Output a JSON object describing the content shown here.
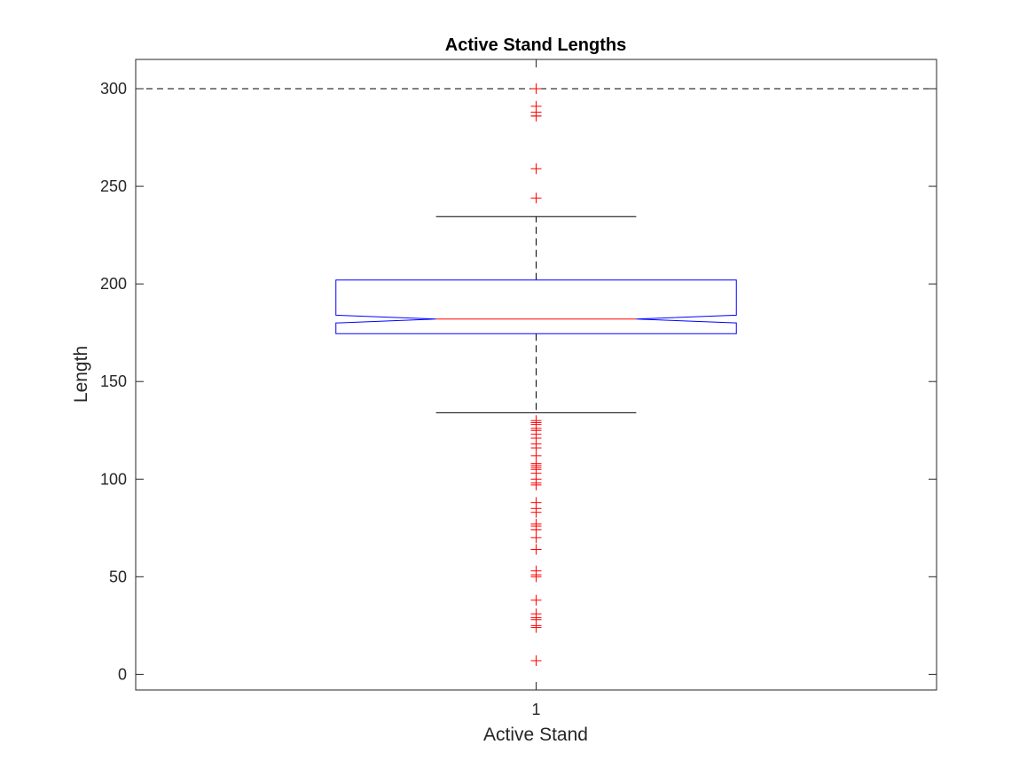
{
  "chart_data": {
    "type": "box",
    "title": "Active Stand Lengths",
    "xlabel": "Active Stand",
    "ylabel": "Length",
    "categories": [
      "1"
    ],
    "ylim": [
      -8,
      315
    ],
    "yticks": [
      0,
      50,
      100,
      150,
      200,
      250,
      300
    ],
    "notched": true,
    "reference_line": {
      "y": 300,
      "style": "dashed"
    },
    "boxes": [
      {
        "category": "1",
        "q1": 174.5,
        "median": 182,
        "q3": 202,
        "notch_low": 180,
        "notch_high": 184,
        "whisker_low": 134,
        "whisker_high": 234.5,
        "outliers": [
          300,
          291,
          288,
          286,
          286,
          259,
          244,
          130,
          129,
          128,
          126,
          125,
          123,
          121,
          118,
          116,
          112,
          108,
          107,
          106,
          105,
          103,
          100,
          98,
          97,
          88,
          85,
          83,
          77,
          76,
          74,
          70,
          64,
          53,
          51,
          50,
          38,
          31,
          29,
          28,
          25,
          24,
          7
        ]
      }
    ],
    "grid": false,
    "colors": {
      "box": "#0000ff",
      "median": "#ff0000",
      "whisker": "#000000",
      "outlier": "#ff0000",
      "axes": "#262626",
      "reference_line": "#000000"
    }
  }
}
